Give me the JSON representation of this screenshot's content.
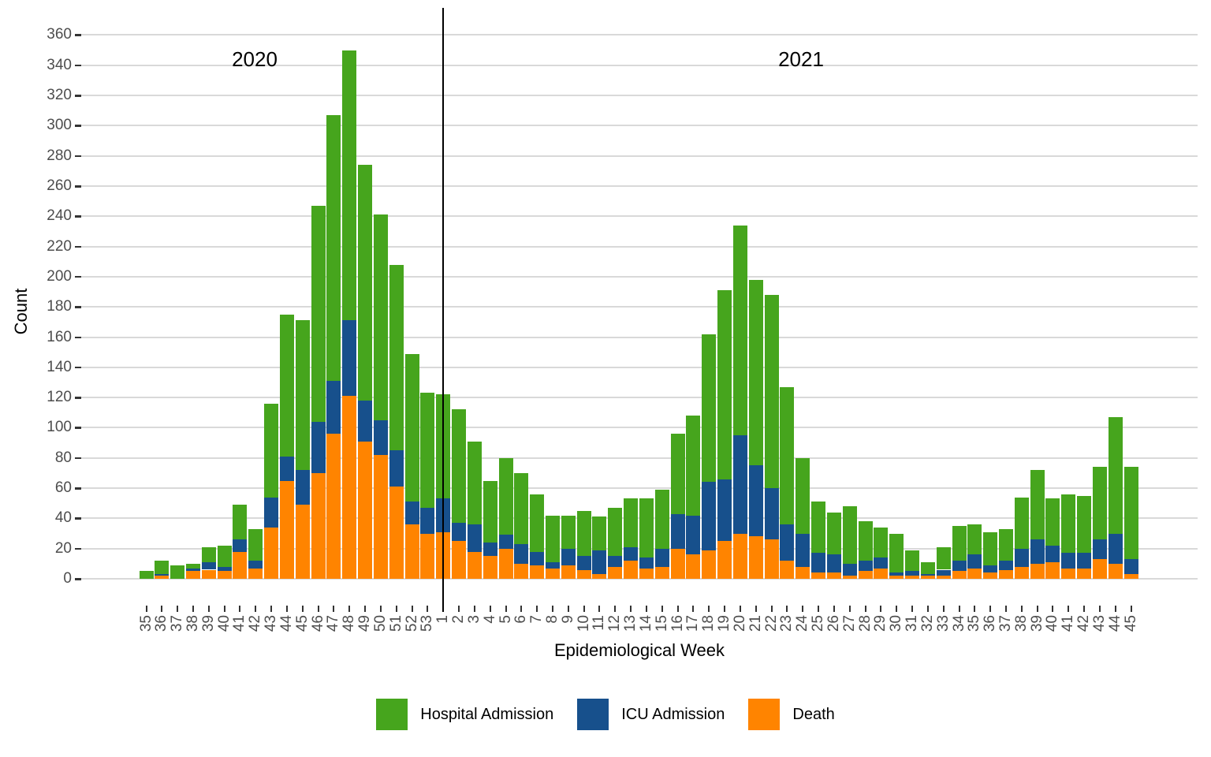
{
  "chart_data": {
    "type": "bar",
    "stacked": true,
    "title": "",
    "xlabel": "Epidemiological Week",
    "ylabel": "Count",
    "ylim": [
      0,
      375
    ],
    "grid": "horizontal-major",
    "legend_position": "bottom",
    "yticks": [
      0,
      20,
      40,
      60,
      80,
      100,
      120,
      140,
      160,
      180,
      200,
      220,
      240,
      260,
      280,
      300,
      320,
      340,
      360
    ],
    "year_groups": [
      {
        "label": "2020",
        "count": 19
      },
      {
        "label": "2021",
        "count": 45
      }
    ],
    "separator_category_index": 19,
    "categories": [
      "35",
      "36",
      "37",
      "38",
      "39",
      "40",
      "41",
      "42",
      "43",
      "44",
      "45",
      "46",
      "47",
      "48",
      "49",
      "50",
      "51",
      "52",
      "53",
      "1",
      "2",
      "3",
      "4",
      "5",
      "6",
      "7",
      "8",
      "9",
      "10",
      "11",
      "12",
      "13",
      "14",
      "15",
      "16",
      "17",
      "18",
      "19",
      "20",
      "21",
      "22",
      "23",
      "24",
      "25",
      "26",
      "27",
      "28",
      "29",
      "30",
      "31",
      "32",
      "33",
      "34",
      "35",
      "36",
      "37",
      "38",
      "39",
      "40",
      "41",
      "42",
      "43",
      "44",
      "45"
    ],
    "series": [
      {
        "name": "Death",
        "color": "#FF8400",
        "values": [
          0,
          2,
          0,
          5,
          6,
          5,
          18,
          7,
          34,
          65,
          49,
          70,
          96,
          121,
          91,
          82,
          61,
          36,
          30,
          31,
          25,
          18,
          15,
          20,
          10,
          9,
          7,
          9,
          6,
          3,
          8,
          12,
          7,
          8,
          20,
          16,
          19,
          25,
          30,
          28,
          26,
          12,
          8,
          4,
          4,
          2,
          5,
          7,
          2,
          2,
          2,
          2,
          5,
          7,
          4,
          6,
          8,
          10,
          11,
          7,
          7,
          13,
          10,
          3
        ]
      },
      {
        "name": "ICU Admission",
        "color": "#17508C",
        "values": [
          0,
          1,
          0,
          2,
          5,
          3,
          8,
          5,
          20,
          16,
          23,
          34,
          35,
          50,
          27,
          23,
          24,
          15,
          17,
          22,
          12,
          18,
          9,
          9,
          13,
          9,
          4,
          11,
          9,
          16,
          7,
          9,
          7,
          12,
          23,
          26,
          45,
          41,
          65,
          47,
          34,
          24,
          22,
          13,
          12,
          8,
          7,
          7,
          2,
          3,
          1,
          4,
          7,
          9,
          5,
          6,
          12,
          16,
          11,
          10,
          10,
          13,
          20,
          10
        ]
      },
      {
        "name": "Hospital Admission",
        "color": "#46A51D",
        "values": [
          5,
          9,
          9,
          3,
          10,
          14,
          23,
          21,
          62,
          94,
          99,
          143,
          176,
          179,
          156,
          136,
          123,
          98,
          76,
          69,
          75,
          55,
          41,
          51,
          47,
          38,
          31,
          22,
          30,
          22,
          32,
          32,
          39,
          39,
          53,
          66,
          98,
          125,
          139,
          123,
          128,
          91,
          50,
          34,
          28,
          38,
          26,
          20,
          26,
          14,
          8,
          15,
          23,
          20,
          22,
          21,
          34,
          46,
          31,
          39,
          38,
          48,
          77,
          61
        ]
      }
    ],
    "legend_items": [
      {
        "label": "Hospital Admission",
        "color": "#46A51D"
      },
      {
        "label": "ICU Admission",
        "color": "#17508C"
      },
      {
        "label": "Death",
        "color": "#FF8400"
      }
    ],
    "annotations": [
      {
        "label": "2020"
      },
      {
        "label": "2021"
      }
    ],
    "colors": {
      "gridline": "#d9d9d9",
      "tick": "#333333",
      "axis_text": "#4d4d4d",
      "separator": "#000000",
      "background": "#ffffff"
    }
  }
}
